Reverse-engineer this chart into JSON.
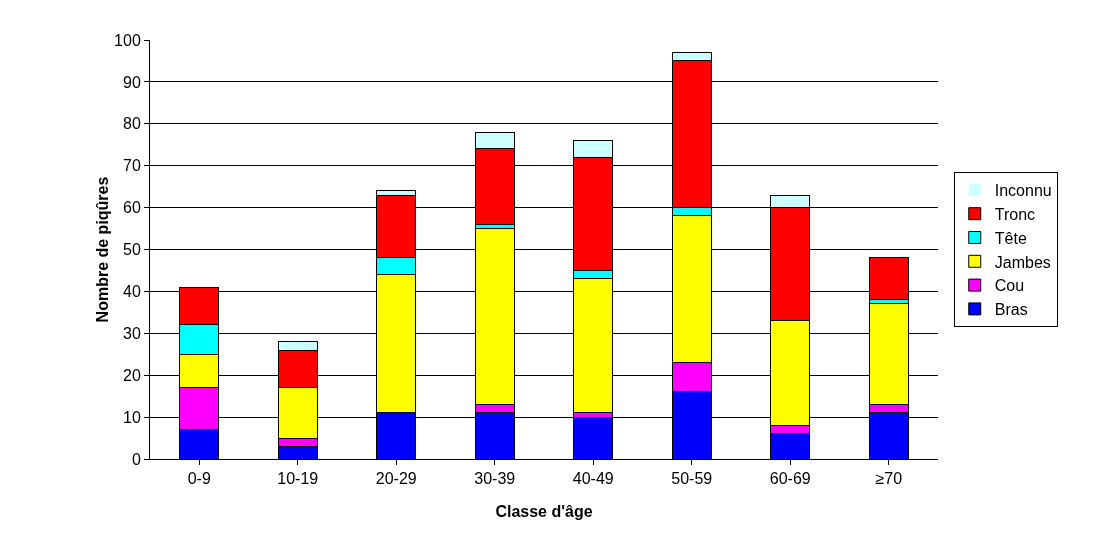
{
  "chart_data": {
    "type": "bar",
    "stacked": true,
    "xlabel": "Classe d'âge",
    "ylabel": "Nombre de piqûres",
    "categories": [
      "0-9",
      "10-19",
      "20-29",
      "30-39",
      "40-49",
      "50-59",
      "60-69",
      "≥70"
    ],
    "series": [
      {
        "name": "Bras",
        "color": "#0000ff",
        "values": [
          7,
          3,
          11,
          11,
          10,
          16,
          6,
          11
        ]
      },
      {
        "name": "Cou",
        "color": "#ff00ff",
        "values": [
          10,
          2,
          0,
          2,
          1,
          7,
          2,
          2
        ]
      },
      {
        "name": "Jambes",
        "color": "#ffff00",
        "values": [
          8,
          12,
          33,
          42,
          32,
          35,
          25,
          24
        ]
      },
      {
        "name": "Tête",
        "color": "#00ffff",
        "values": [
          7,
          0,
          4,
          1,
          2,
          2,
          0,
          1
        ]
      },
      {
        "name": "Tronc",
        "color": "#ff0000",
        "values": [
          9,
          9,
          15,
          18,
          27,
          35,
          27,
          10
        ]
      },
      {
        "name": "Inconnu",
        "color": "#ccffff",
        "values": [
          0,
          2,
          1,
          4,
          4,
          2,
          3,
          0
        ]
      }
    ],
    "ylim": [
      0,
      100
    ],
    "yticks": [
      0,
      10,
      20,
      30,
      40,
      50,
      60,
      70,
      80,
      90,
      100
    ],
    "grid": "y",
    "legend": "right"
  }
}
